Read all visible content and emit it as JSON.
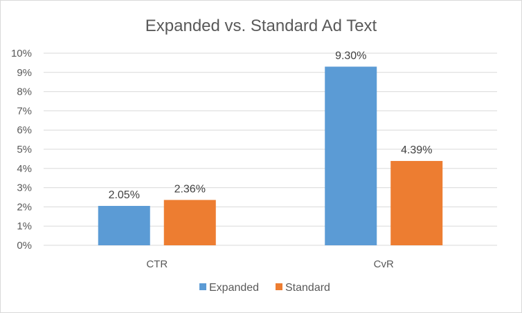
{
  "chart_data": {
    "type": "bar",
    "title": "Expanded vs. Standard Ad Text",
    "categories": [
      "CTR",
      "CvR"
    ],
    "series": [
      {
        "name": "Expanded",
        "values": [
          2.05,
          9.3
        ],
        "labels": [
          "2.05%",
          "9.30%"
        ],
        "color": "#5b9bd5"
      },
      {
        "name": "Standard",
        "values": [
          2.36,
          4.39
        ],
        "labels": [
          "2.36%",
          "4.39%"
        ],
        "color": "#ed7d31"
      }
    ],
    "ylim": [
      0,
      10
    ],
    "y_ticks": [
      "0%",
      "1%",
      "2%",
      "3%",
      "4%",
      "5%",
      "6%",
      "7%",
      "8%",
      "9%",
      "10%"
    ],
    "y_tick_values": [
      0,
      1,
      2,
      3,
      4,
      5,
      6,
      7,
      8,
      9,
      10
    ],
    "grid": true,
    "legend": "bottom",
    "gridline_color": "#d9d9d9"
  }
}
